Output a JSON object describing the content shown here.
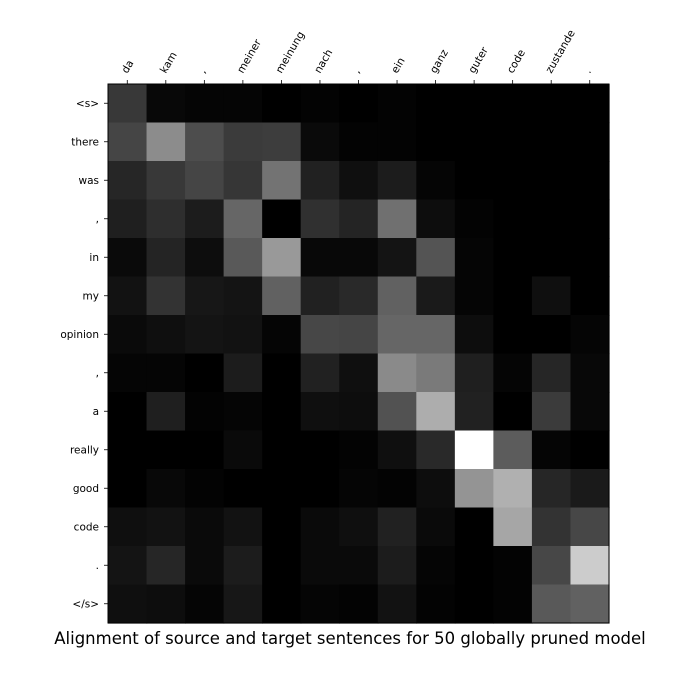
{
  "chart_data": {
    "type": "heatmap",
    "title": "Alignment of source and target sentences for 50 globally pruned model",
    "x_labels": [
      "da",
      "kam",
      ",",
      "meiner",
      "meinung",
      "nach",
      ",",
      "ein",
      "ganz",
      "guter",
      "code",
      "zustande",
      "."
    ],
    "y_labels": [
      "<s>",
      "there",
      "was",
      ",",
      "in",
      "my",
      "opinion",
      ",",
      "a",
      "really",
      "good",
      "code",
      ".",
      "</s>"
    ],
    "colormap": "grayscale (black = 0, white = max)",
    "grid": false,
    "values": [
      [
        0.22,
        0.03,
        0.02,
        0.02,
        0.0,
        0.01,
        0.0,
        0.01,
        0.0,
        0.0,
        0.0,
        0.0,
        0.0
      ],
      [
        0.27,
        0.55,
        0.3,
        0.23,
        0.24,
        0.04,
        0.01,
        0.01,
        0.0,
        0.0,
        0.0,
        0.0,
        0.0
      ],
      [
        0.15,
        0.22,
        0.27,
        0.21,
        0.45,
        0.13,
        0.06,
        0.11,
        0.02,
        0.0,
        0.0,
        0.0,
        0.0
      ],
      [
        0.12,
        0.18,
        0.11,
        0.4,
        0.0,
        0.19,
        0.14,
        0.44,
        0.05,
        0.01,
        0.0,
        0.0,
        0.0
      ],
      [
        0.04,
        0.14,
        0.05,
        0.35,
        0.6,
        0.03,
        0.03,
        0.08,
        0.33,
        0.02,
        0.0,
        0.0,
        0.0
      ],
      [
        0.07,
        0.2,
        0.09,
        0.08,
        0.38,
        0.13,
        0.16,
        0.38,
        0.1,
        0.02,
        0.0,
        0.06,
        0.0
      ],
      [
        0.04,
        0.06,
        0.08,
        0.07,
        0.02,
        0.28,
        0.27,
        0.4,
        0.4,
        0.05,
        0.0,
        0.0,
        0.02
      ],
      [
        0.02,
        0.02,
        0.0,
        0.11,
        0.0,
        0.13,
        0.06,
        0.54,
        0.48,
        0.12,
        0.02,
        0.15,
        0.03
      ],
      [
        0.0,
        0.12,
        0.01,
        0.02,
        0.0,
        0.06,
        0.05,
        0.32,
        0.68,
        0.13,
        0.0,
        0.23,
        0.03
      ],
      [
        0.0,
        0.0,
        0.0,
        0.04,
        0.0,
        0.0,
        0.01,
        0.06,
        0.16,
        1.0,
        0.36,
        0.02,
        0.0
      ],
      [
        0.0,
        0.03,
        0.01,
        0.0,
        0.0,
        0.0,
        0.02,
        0.01,
        0.05,
        0.58,
        0.69,
        0.15,
        0.1
      ],
      [
        0.06,
        0.07,
        0.04,
        0.07,
        0.0,
        0.04,
        0.06,
        0.13,
        0.04,
        0.0,
        0.65,
        0.2,
        0.28
      ],
      [
        0.08,
        0.15,
        0.04,
        0.11,
        0.0,
        0.04,
        0.04,
        0.11,
        0.02,
        0.0,
        0.01,
        0.28,
        0.8
      ],
      [
        0.06,
        0.05,
        0.02,
        0.09,
        0.0,
        0.02,
        0.01,
        0.07,
        0.01,
        0.0,
        0.01,
        0.35,
        0.38
      ]
    ]
  }
}
